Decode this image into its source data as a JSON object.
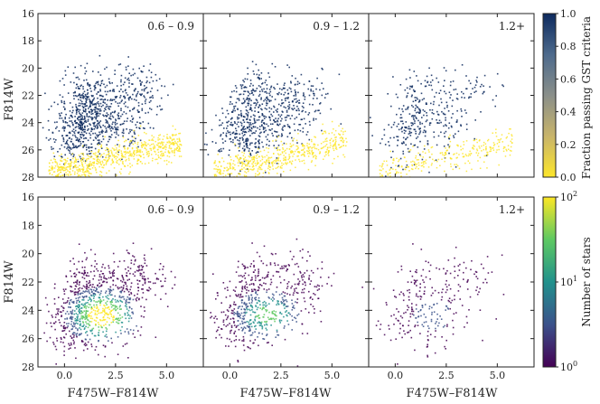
{
  "chart_data": {
    "type": "heatmap",
    "shared_x": {
      "label": "F475W–F814W",
      "ticks": [
        "0.0",
        "2.5",
        "5.0"
      ],
      "tick_values": [
        0,
        2.5,
        5
      ],
      "range": [
        -1.3,
        6.8
      ]
    },
    "shared_y": {
      "label": "F814W",
      "ticks": [
        "16",
        "18",
        "20",
        "22",
        "24",
        "26",
        "28"
      ],
      "tick_values": [
        16,
        18,
        20,
        22,
        24,
        26,
        28
      ],
      "range": [
        28,
        16
      ],
      "inverted": true
    },
    "rows": [
      {
        "name": "fraction",
        "colorbar": {
          "label": "Fraction passing GST criteria",
          "ticks": [
            "0.0",
            "0.2",
            "0.4",
            "0.6",
            "0.8",
            "1.0"
          ],
          "tick_values": [
            0,
            0.2,
            0.4,
            0.6,
            0.8,
            1.0
          ],
          "scale": "linear",
          "colors": [
            "#fde62b",
            "#c8b46a",
            "#8a8f8a",
            "#4d6a8c",
            "#0d2a5e"
          ]
        },
        "panels": [
          {
            "label": "0.6 – 0.9",
            "density": 1.0
          },
          {
            "label": "0.9 – 1.2",
            "density": 0.75
          },
          {
            "label": "1.2+",
            "density": 0.4
          }
        ]
      },
      {
        "name": "counts",
        "colorbar": {
          "label": "Number of stars",
          "ticks": [
            "10",
            "10",
            "10"
          ],
          "tick_exponents": [
            "0",
            "1",
            "2"
          ],
          "tick_values": [
            1,
            10,
            100
          ],
          "scale": "log",
          "colors": [
            "#440154",
            "#3b528b",
            "#21918c",
            "#5ec962",
            "#fde725"
          ]
        },
        "panels": [
          {
            "label": "0.6 – 0.9",
            "density": 1.0
          },
          {
            "label": "0.9 – 1.2",
            "density": 0.7
          },
          {
            "label": "1.2+",
            "density": 0.3
          }
        ]
      }
    ]
  }
}
